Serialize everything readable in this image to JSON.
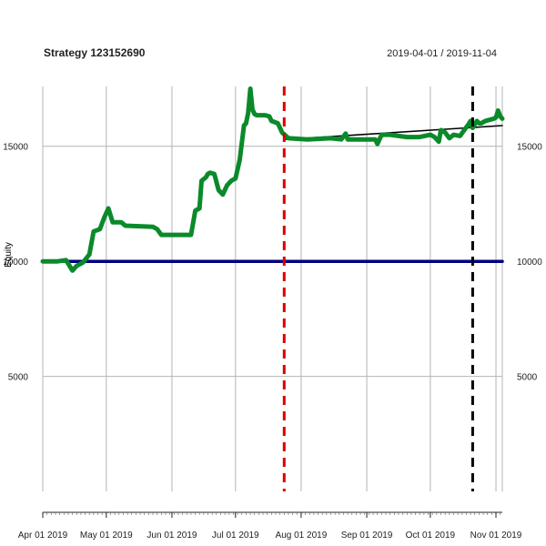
{
  "chart_data": {
    "type": "line",
    "title": "Strategy 123152690",
    "date_range": "2019-04-01 / 2019-11-04",
    "ylabel": "Equity",
    "xlabel": "",
    "x_tick_labels": [
      "Apr 01 2019",
      "May 01 2019",
      "Jun 01 2019",
      "Jul 01 2019",
      "Aug 01 2019",
      "Sep 01 2019",
      "Oct 01 2019",
      "Nov 01 2019"
    ],
    "y_ticks": [
      5000,
      10000,
      15000
    ],
    "xlim": [
      "2019-04-01",
      "2019-11-04"
    ],
    "ylim": [
      0,
      17600
    ],
    "grid": true,
    "series": [
      {
        "color": "#0a8a2a",
        "points": [
          [
            "2019-04-01",
            10000
          ],
          [
            "2019-04-08",
            10000
          ],
          [
            "2019-04-12",
            10050
          ],
          [
            "2019-04-14",
            9750
          ],
          [
            "2019-04-15",
            9600
          ],
          [
            "2019-04-17",
            9800
          ],
          [
            "2019-04-20",
            9950
          ],
          [
            "2019-04-23",
            10300
          ],
          [
            "2019-04-25",
            11300
          ],
          [
            "2019-04-28",
            11400
          ],
          [
            "2019-04-30",
            11900
          ],
          [
            "2019-05-02",
            12300
          ],
          [
            "2019-05-04",
            11700
          ],
          [
            "2019-05-08",
            11700
          ],
          [
            "2019-05-10",
            11550
          ],
          [
            "2019-05-23",
            11500
          ],
          [
            "2019-05-25",
            11400
          ],
          [
            "2019-05-27",
            11150
          ],
          [
            "2019-06-10",
            11150
          ],
          [
            "2019-06-12",
            12200
          ],
          [
            "2019-06-14",
            12300
          ],
          [
            "2019-06-15",
            13500
          ],
          [
            "2019-06-17",
            13650
          ],
          [
            "2019-06-18",
            13800
          ],
          [
            "2019-06-19",
            13850
          ],
          [
            "2019-06-21",
            13800
          ],
          [
            "2019-06-23",
            13100
          ],
          [
            "2019-06-25",
            12900
          ],
          [
            "2019-06-27",
            13300
          ],
          [
            "2019-06-29",
            13500
          ],
          [
            "2019-07-01",
            13600
          ],
          [
            "2019-07-03",
            14400
          ],
          [
            "2019-07-05",
            15900
          ],
          [
            "2019-07-06",
            16000
          ],
          [
            "2019-07-07",
            16450
          ],
          [
            "2019-07-08",
            17500
          ],
          [
            "2019-07-09",
            16600
          ],
          [
            "2019-07-10",
            16400
          ],
          [
            "2019-07-11",
            16350
          ],
          [
            "2019-07-15",
            16350
          ],
          [
            "2019-07-17",
            16300
          ],
          [
            "2019-07-18",
            16100
          ],
          [
            "2019-07-21",
            16000
          ],
          [
            "2019-07-23",
            15600
          ],
          [
            "2019-07-26",
            15350
          ],
          [
            "2019-08-04",
            15300
          ],
          [
            "2019-08-15",
            15350
          ],
          [
            "2019-08-20",
            15300
          ],
          [
            "2019-08-22",
            15550
          ],
          [
            "2019-08-23",
            15300
          ],
          [
            "2019-09-05",
            15300
          ],
          [
            "2019-09-06",
            15100
          ],
          [
            "2019-09-08",
            15500
          ],
          [
            "2019-09-12",
            15500
          ],
          [
            "2019-09-20",
            15400
          ],
          [
            "2019-09-26",
            15400
          ],
          [
            "2019-10-01",
            15500
          ],
          [
            "2019-10-03",
            15400
          ],
          [
            "2019-10-05",
            15200
          ],
          [
            "2019-10-06",
            15700
          ],
          [
            "2019-10-08",
            15600
          ],
          [
            "2019-10-10",
            15350
          ],
          [
            "2019-10-12",
            15500
          ],
          [
            "2019-10-15",
            15450
          ],
          [
            "2019-10-17",
            15700
          ],
          [
            "2019-10-19",
            15950
          ],
          [
            "2019-10-20",
            16100
          ],
          [
            "2019-10-21",
            15800
          ],
          [
            "2019-10-23",
            16100
          ],
          [
            "2019-10-24",
            16000
          ],
          [
            "2019-10-25",
            16000
          ],
          [
            "2019-10-27",
            16100
          ],
          [
            "2019-10-29",
            16150
          ],
          [
            "2019-10-31",
            16200
          ],
          [
            "2019-11-01",
            16250
          ],
          [
            "2019-11-02",
            16550
          ],
          [
            "2019-11-03",
            16300
          ],
          [
            "2019-11-04",
            16200
          ]
        ]
      },
      {
        "color": "#000080",
        "points": [
          [
            "2019-04-01",
            10000
          ],
          [
            "2019-11-04",
            10000
          ]
        ]
      },
      {
        "color": "#000000",
        "points": [
          [
            "2019-07-25",
            15300
          ],
          [
            "2019-11-04",
            15900
          ]
        ]
      }
    ],
    "vlines": [
      {
        "date": "2019-07-24",
        "color": "#dd0000",
        "style": "dashed"
      },
      {
        "date": "2019-10-21",
        "color": "#000000",
        "style": "dashed"
      }
    ]
  }
}
